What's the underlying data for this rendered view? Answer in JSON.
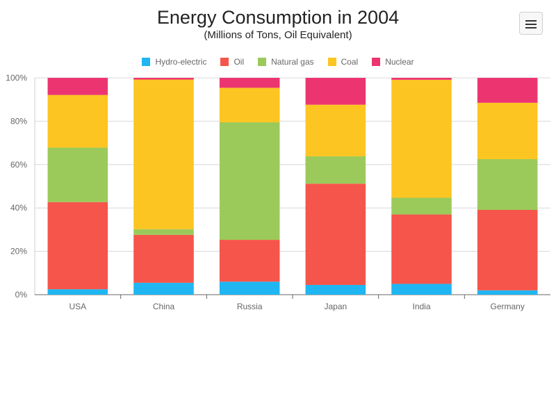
{
  "header": {
    "title": "Energy Consumption in 2004",
    "subtitle": "(Millions of Tons, Oil Equivalent)",
    "menu_icon": "hamburger-menu-icon"
  },
  "chart_data": {
    "type": "bar",
    "stacked": "percent",
    "title": "Energy Consumption in 2004",
    "subtitle": "(Millions of Tons, Oil Equivalent)",
    "categories": [
      "USA",
      "China",
      "Russia",
      "Japan",
      "India",
      "Germany"
    ],
    "series": [
      {
        "name": "Hydro-electric",
        "color": "#1fb6f2",
        "values": [
          2.5,
          5.5,
          6.0,
          4.5,
          5.0,
          2.0
        ]
      },
      {
        "name": "Oil",
        "color": "#f5554a",
        "values": [
          40.2,
          22.1,
          19.3,
          46.7,
          32.0,
          37.1
        ]
      },
      {
        "name": "Natural gas",
        "color": "#9bca5a",
        "values": [
          25.1,
          2.6,
          54.2,
          12.6,
          7.7,
          23.4
        ]
      },
      {
        "name": "Coal",
        "color": "#fdc522",
        "values": [
          24.3,
          69.0,
          15.9,
          23.8,
          54.4,
          26.0
        ]
      },
      {
        "name": "Nuclear",
        "color": "#ec3570",
        "values": [
          7.9,
          0.8,
          4.6,
          12.4,
          0.9,
          11.5
        ]
      }
    ],
    "ylim": [
      0,
      100
    ],
    "yticks": [
      "0%",
      "20%",
      "40%",
      "60%",
      "80%",
      "100%"
    ],
    "grid": true,
    "legend": "top-center",
    "xlabel": "",
    "ylabel": ""
  }
}
